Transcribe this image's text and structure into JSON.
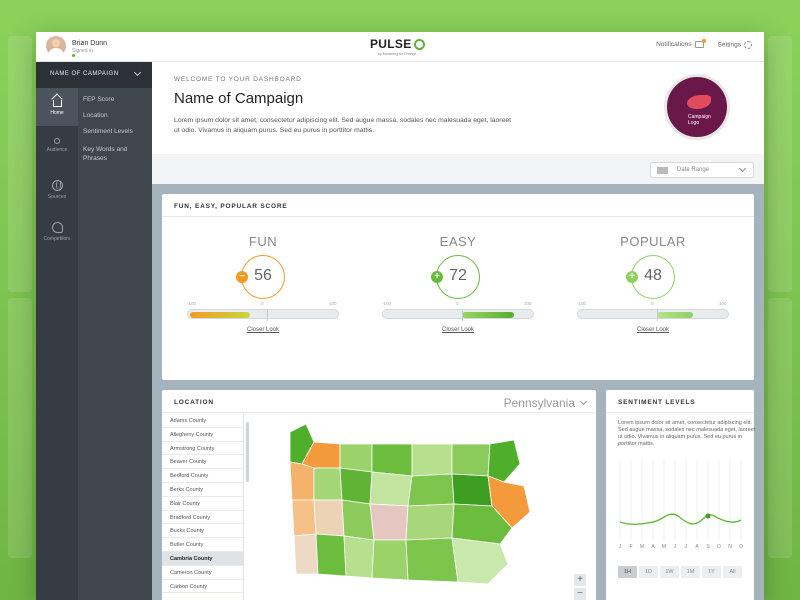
{
  "user": {
    "name": "Brian Dunn",
    "status": "Signed in"
  },
  "brand": {
    "name": "PULSE",
    "tagline": "by Marketing for Change",
    "accent": "#5cb531"
  },
  "topnav": {
    "notifications": "Notifications",
    "settings": "Settings"
  },
  "sidebar": {
    "campaign_label": "NAME OF CAMPAIGN",
    "nav": [
      {
        "label": "Home",
        "icon": "home-icon",
        "active": true
      },
      {
        "label": "Audience",
        "icon": "people-icon"
      },
      {
        "label": "Sources",
        "icon": "globe-icon"
      },
      {
        "label": "Competitors",
        "icon": "head-icon"
      }
    ],
    "sub": [
      "FEP Score",
      "Location",
      "Sentiment Levels",
      "Key Words and Phrases"
    ]
  },
  "header": {
    "kicker": "WELCOME TO YOUR DASHBOARD",
    "title": "Name of Campaign",
    "description": "Lorem ipsum dolor sit amet, consectetur adipiscing elit. Sed augue massa, sodales nec malesuada eget, laoreet ut odio. Vivamus in aliquam purus. Sed eu purus in porttitor mattis.",
    "logo_text_1": "Campaign",
    "logo_text_2": "Logo",
    "date_range": "Date Range"
  },
  "fep": {
    "title": "FUN, EASY, POPULAR SCORE",
    "scale_min": "-100",
    "scale_mid": "0",
    "scale_max": "100",
    "link": "Closer Look",
    "scores": [
      {
        "label": "FUN",
        "value": "56",
        "sign": "−",
        "color": "#f39a24"
      },
      {
        "label": "EASY",
        "value": "72",
        "sign": "+",
        "color": "#67bb38"
      },
      {
        "label": "POPULAR",
        "value": "48",
        "sign": "+",
        "color": "#8fd160"
      }
    ]
  },
  "location": {
    "title": "LOCATION",
    "state": "Pennsylvania",
    "counties": [
      "Adams County",
      "Allegheny County",
      "Armstrong County",
      "Beaver County",
      "Bedford County",
      "Berks County",
      "Blair County",
      "Bradford County",
      "Bucks County",
      "Butler County",
      "Cambria County",
      "Cameron County",
      "Carbon County"
    ],
    "selected": "Cambria County",
    "zoom_in": "+",
    "zoom_out": "−"
  },
  "sentiment": {
    "title": "SENTIMENT LEVELS",
    "description": "Lorem ipsum dolor sit amet, consectetur adipiscing elit. Sed augue massa, sodales nec malesuada eget, laoreet ut odio. Vivamus in aliquam purus. Sed eu purus in porttitor mattis.",
    "months": [
      "J",
      "F",
      "M",
      "A",
      "M",
      "J",
      "J",
      "A",
      "S",
      "O",
      "N",
      "D"
    ],
    "periods": [
      "1H",
      "1D",
      "1W",
      "1M",
      "1Y",
      "All"
    ],
    "active_period": "1H"
  }
}
